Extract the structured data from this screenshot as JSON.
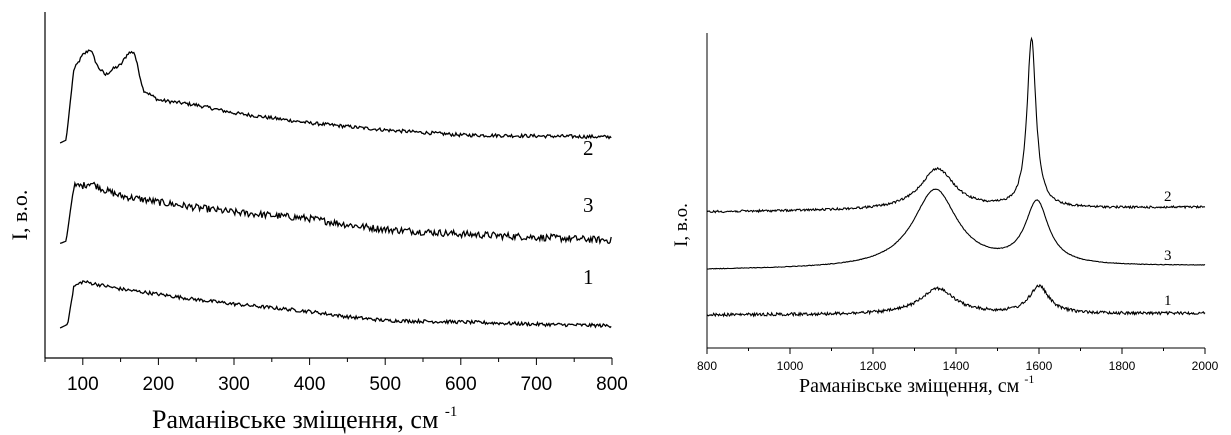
{
  "chart_data": [
    {
      "type": "line",
      "xlabel": "Раманівське зміщення, см",
      "xlabel_sup": "-1",
      "ylabel": "I, в.о.",
      "xlim": [
        50,
        800
      ],
      "xticks": [
        "100",
        "200",
        "300",
        "400",
        "500",
        "600",
        "700",
        "800"
      ],
      "grid": false,
      "series": [
        {
          "label": "2",
          "x": [
            70,
            78,
            88,
            100,
            110,
            120,
            130,
            140,
            150,
            160,
            168,
            180,
            200,
            250,
            300,
            400,
            500,
            600,
            700,
            800
          ],
          "y": [
            0.02,
            0.05,
            0.75,
            0.9,
            0.96,
            0.78,
            0.7,
            0.76,
            0.8,
            0.92,
            0.93,
            0.55,
            0.45,
            0.4,
            0.32,
            0.22,
            0.15,
            0.1,
            0.09,
            0.08
          ]
        },
        {
          "label": "3",
          "x": [
            70,
            78,
            88,
            100,
            110,
            130,
            150,
            200,
            250,
            300,
            350,
            400,
            450,
            500,
            600,
            700,
            800
          ],
          "y": [
            0.02,
            0.05,
            0.75,
            0.76,
            0.8,
            0.7,
            0.63,
            0.55,
            0.48,
            0.42,
            0.38,
            0.34,
            0.26,
            0.2,
            0.14,
            0.1,
            0.06
          ]
        },
        {
          "label": "1",
          "x": [
            70,
            80,
            88,
            100,
            120,
            150,
            200,
            250,
            300,
            400,
            450,
            500,
            600,
            700,
            800
          ],
          "y": [
            0.0,
            0.05,
            0.55,
            0.62,
            0.58,
            0.52,
            0.45,
            0.38,
            0.32,
            0.22,
            0.15,
            0.1,
            0.08,
            0.05,
            0.03
          ]
        }
      ]
    },
    {
      "type": "line",
      "xlabel": "Раманівське зміщення, см",
      "xlabel_sup": "-1",
      "ylabel": "I, в.о.",
      "xlim": [
        800,
        2000
      ],
      "xticks": [
        "800",
        "1000",
        "1200",
        "1400",
        "1600",
        "1800",
        "2000"
      ],
      "grid": false,
      "series": [
        {
          "label": "2",
          "peaks": [
            {
              "x": 1355,
              "h": 0.53,
              "w": 50
            },
            {
              "x": 1582,
              "h": 2.2,
              "w": 13
            }
          ],
          "baseline": [
            0.0,
            0.06
          ]
        },
        {
          "label": "3",
          "peaks": [
            {
              "x": 1350,
              "h": 1.0,
              "w": 65
            },
            {
              "x": 1595,
              "h": 0.8,
              "w": 34
            }
          ],
          "baseline": [
            0.0,
            0.05
          ]
        },
        {
          "label": "1",
          "peaks": [
            {
              "x": 1355,
              "h": 0.33,
              "w": 50
            },
            {
              "x": 1600,
              "h": 0.35,
              "w": 28
            }
          ],
          "baseline": [
            0.0,
            0.02
          ]
        }
      ]
    }
  ]
}
